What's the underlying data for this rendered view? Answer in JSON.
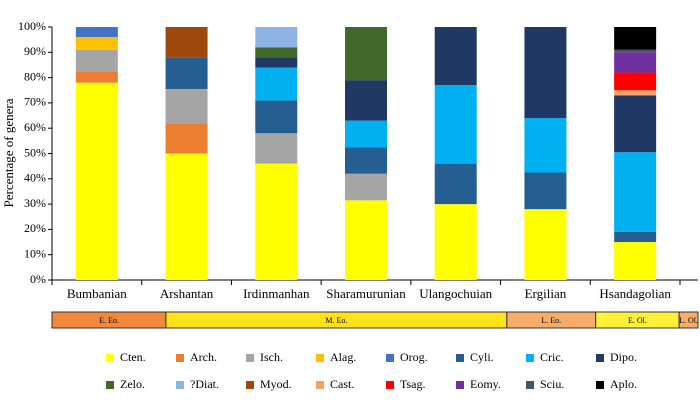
{
  "chart_data": {
    "type": "stacked-bar",
    "y_label": "Percentage of genera",
    "categories": [
      "Bumbanian",
      "Arshantan",
      "Irdinmanhan",
      "Sharamurunian",
      "Ulangochuian",
      "Ergilian",
      "Hsandagolian"
    ],
    "ylim": [
      0,
      100
    ],
    "yticks": [
      {
        "value": 0,
        "label": "0%"
      },
      {
        "value": 10,
        "label": "10%"
      },
      {
        "value": 20,
        "label": "20%"
      },
      {
        "value": 30,
        "label": "30%"
      },
      {
        "value": 40,
        "label": "40%"
      },
      {
        "value": 50,
        "label": "50%"
      },
      {
        "value": 60,
        "label": "60%"
      },
      {
        "value": 70,
        "label": "70%"
      },
      {
        "value": 80,
        "label": "80%"
      },
      {
        "value": 90,
        "label": "90%"
      },
      {
        "value": 100,
        "label": "100%"
      }
    ],
    "series": [
      {
        "name": "Cten.",
        "color": "#ffff00",
        "values": [
          78,
          50,
          46,
          31.5,
          30,
          28,
          15
        ]
      },
      {
        "name": "Arch.",
        "color": "#ed7d31",
        "values": [
          4.5,
          12,
          null,
          null,
          null,
          null,
          null
        ]
      },
      {
        "name": "Isch.",
        "color": "#a5a5a5",
        "values": [
          8.5,
          13.5,
          12,
          10.5,
          null,
          null,
          null
        ]
      },
      {
        "name": "Alag.",
        "color": "#ffc000",
        "values": [
          5,
          null,
          null,
          null,
          null,
          null,
          null
        ]
      },
      {
        "name": "Orog.",
        "color": "#4472c4",
        "values": [
          4,
          null,
          null,
          null,
          null,
          null,
          null
        ]
      },
      {
        "name": "Cyli.",
        "color": "#255e91",
        "values": [
          null,
          12.5,
          13,
          10.5,
          16,
          14.5,
          4
        ]
      },
      {
        "name": "Cric.",
        "color": "#00b0f0",
        "values": [
          null,
          null,
          13,
          10.5,
          31,
          21.5,
          31.5
        ]
      },
      {
        "name": "Dipo.",
        "color": "#203864",
        "values": [
          null,
          null,
          4,
          16,
          23,
          36,
          22.5
        ]
      },
      {
        "name": "Zelo.",
        "color": "#43682b",
        "values": [
          null,
          null,
          4,
          21,
          null,
          null,
          null
        ]
      },
      {
        "name": "?Diat.",
        "color": "#8db4e2",
        "values": [
          null,
          null,
          8,
          null,
          null,
          null,
          null
        ]
      },
      {
        "name": "Myod.",
        "color": "#9e480e",
        "values": [
          null,
          12,
          null,
          null,
          null,
          null,
          null
        ]
      },
      {
        "name": "Cast.",
        "color": "#f4a46a",
        "values": [
          null,
          null,
          null,
          null,
          null,
          null,
          2
        ]
      },
      {
        "name": "Tsag.",
        "color": "#ff0000",
        "values": [
          null,
          null,
          null,
          null,
          null,
          null,
          7
        ]
      },
      {
        "name": "Eomy.",
        "color": "#7030a0",
        "values": [
          null,
          null,
          null,
          null,
          null,
          null,
          8
        ]
      },
      {
        "name": "Sciu.",
        "color": "#44546a",
        "values": [
          null,
          null,
          null,
          null,
          null,
          null,
          1
        ]
      },
      {
        "name": "Aplo.",
        "color": "#000000",
        "values": [
          null,
          null,
          null,
          null,
          null,
          null,
          9
        ]
      }
    ],
    "epochs": [
      {
        "label": "E. Eo.",
        "color": "#f08a3a"
      },
      {
        "label": "M. Eo.",
        "color": "#ffe21a"
      },
      {
        "label": "L. Eo.",
        "color": "#f6ad6a"
      },
      {
        "label": "E. Ol.",
        "color": "#fff03a"
      },
      {
        "label": "L. Ol.",
        "color": "#f6ad6a"
      }
    ]
  }
}
